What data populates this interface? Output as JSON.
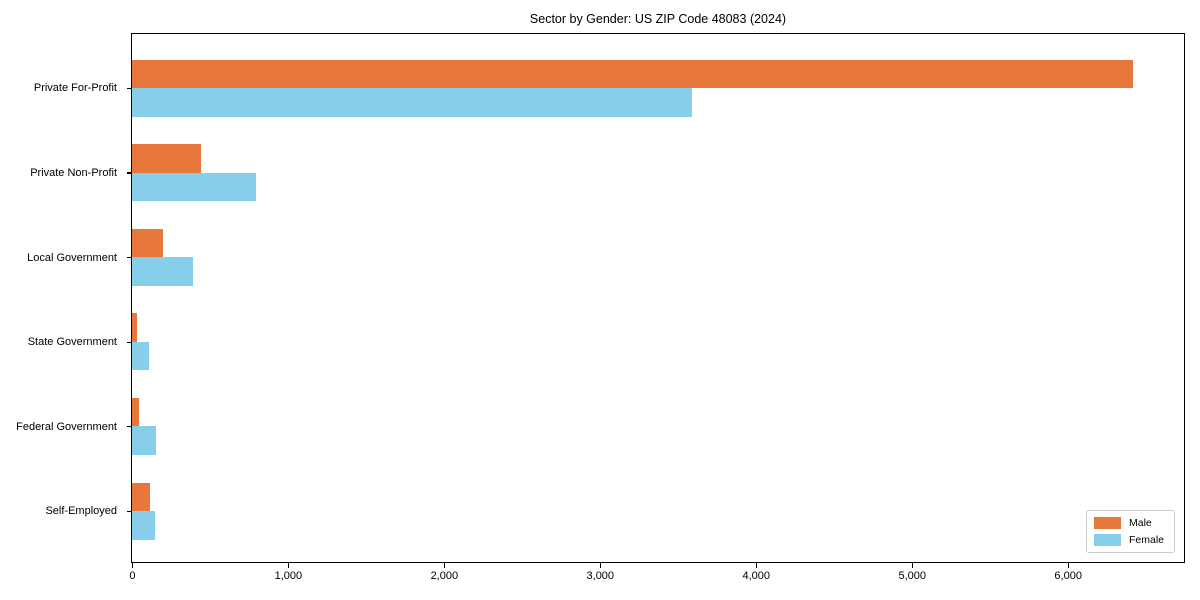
{
  "title": "Sector by Gender: US ZIP Code 48083 (2024)",
  "chart_data": {
    "type": "bar",
    "orientation": "horizontal",
    "title": "Sector by Gender: US ZIP Code 48083 (2024)",
    "categories": [
      "Private For-Profit",
      "Private Non-Profit",
      "Local Government",
      "State Government",
      "Federal Government",
      "Self-Employed"
    ],
    "series": [
      {
        "name": "Male",
        "color": "#e8773b",
        "values": [
          6420,
          440,
          200,
          35,
          45,
          115
        ]
      },
      {
        "name": "Female",
        "color": "#87ceeb",
        "values": [
          3590,
          795,
          390,
          110,
          155,
          150
        ]
      }
    ],
    "xlabel": "",
    "ylabel": "",
    "xlim": [
      0,
      6740
    ],
    "x_ticks": [
      0,
      1000,
      2000,
      3000,
      4000,
      5000,
      6000
    ],
    "x_tick_labels": [
      "0",
      "1,000",
      "2,000",
      "3,000",
      "4,000",
      "5,000",
      "6,000"
    ],
    "grid": false,
    "legend": {
      "position": "lower right",
      "entries": [
        "Male",
        "Female"
      ]
    }
  },
  "colors": {
    "male": "#e8773b",
    "female": "#87ceeb",
    "spine": "#000000",
    "legend_border": "#cccccc",
    "text": "#000000"
  }
}
